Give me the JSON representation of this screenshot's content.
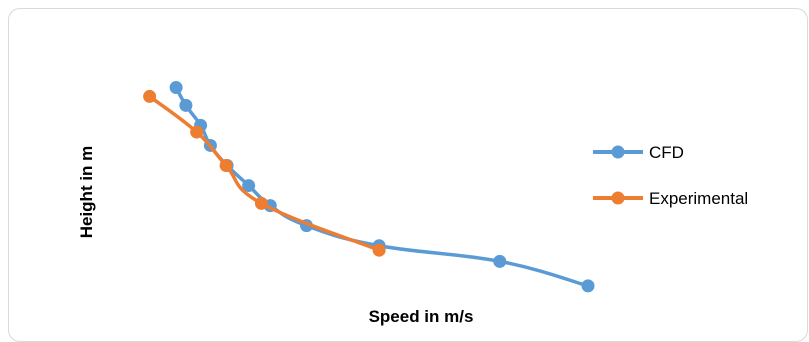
{
  "chart_data": {
    "type": "line",
    "title": "",
    "xlabel": "Speed in m/s",
    "ylabel": "Height in m",
    "xlim": [
      0.8,
      6.0
    ],
    "ylim": [
      0,
      1.05
    ],
    "grid": false,
    "axes_visible": false,
    "legend_position": "right",
    "series": [
      {
        "name": "CFD",
        "color": "#5B9BD5",
        "x": [
          1.27,
          1.37,
          1.52,
          1.62,
          1.79,
          2.01,
          2.23,
          2.6,
          3.34,
          4.57,
          5.47
        ],
        "y": [
          0.94,
          0.86,
          0.77,
          0.68,
          0.59,
          0.5,
          0.41,
          0.32,
          0.23,
          0.16,
          0.05
        ]
      },
      {
        "name": "Experimental",
        "color": "#ED7D31",
        "x": [
          1.0,
          1.48,
          1.78,
          2.14,
          3.34
        ],
        "y": [
          0.9,
          0.74,
          0.59,
          0.42,
          0.21
        ]
      }
    ]
  }
}
